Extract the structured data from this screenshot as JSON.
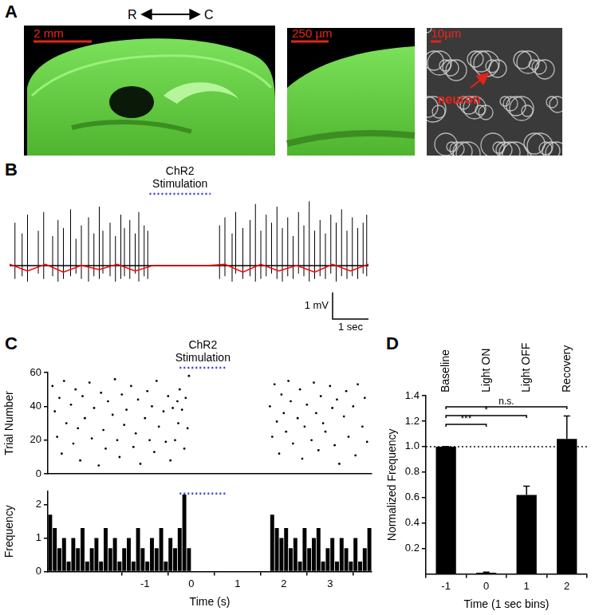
{
  "panel_labels": [
    "A",
    "B",
    "C",
    "D"
  ],
  "panel_a": {
    "direction": [
      "R",
      "C"
    ],
    "images": [
      {
        "scale_bar": "2 mm"
      },
      {
        "scale_bar": "250 µm"
      },
      {
        "scale_bar": "10µm",
        "annotation": "neuron"
      }
    ]
  },
  "chart_data": [
    {
      "type": "line",
      "tick_labels": false,
      "grid": false,
      "xlim": [
        0,
        10
      ],
      "ylim": [
        -2.0,
        2.5
      ],
      "annotation": "ChR2 Stimulation",
      "stimulation": [
        3.9,
        5.6
      ],
      "scale_bar": {
        "x": 1,
        "x_label": "1 sec",
        "y": 1,
        "y_label": "1 mV"
      },
      "spikes": {
        "color": "#000000",
        "x": [
          0.15,
          0.35,
          0.5,
          0.8,
          0.95,
          1.2,
          1.35,
          1.5,
          1.7,
          1.85,
          2.0,
          2.2,
          2.35,
          2.5,
          2.6,
          2.8,
          2.95,
          3.1,
          3.2,
          3.35,
          3.5,
          3.6,
          3.75,
          3.85,
          5.85,
          6.0,
          6.2,
          6.3,
          6.5,
          6.7,
          6.85,
          7.0,
          7.15,
          7.3,
          7.45,
          7.6,
          7.75,
          7.9,
          8.05,
          8.2,
          8.35,
          8.5,
          8.65,
          8.8,
          8.95,
          9.1,
          9.25,
          9.4,
          9.55,
          9.7,
          9.85,
          9.95
        ],
        "high": [
          1.6,
          1.2,
          1.9,
          1.3,
          2.0,
          1.1,
          1.7,
          1.4,
          2.1,
          1.0,
          1.5,
          1.8,
          1.2,
          2.2,
          1.3,
          1.6,
          1.1,
          1.9,
          1.4,
          1.7,
          1.2,
          2.0,
          1.5,
          1.3,
          1.5,
          1.8,
          1.2,
          2.0,
          1.4,
          1.7,
          2.3,
          1.3,
          1.9,
          1.6,
          2.2,
          1.4,
          1.8,
          1.1,
          2.0,
          1.5,
          2.4,
          1.3,
          1.7,
          1.2,
          1.9,
          1.6,
          2.1,
          1.3,
          1.8,
          1.4,
          1.6,
          1.9
        ],
        "low": [
          -0.5,
          -0.4,
          -0.6,
          -0.3,
          -0.5,
          -0.4,
          -0.6,
          -0.5,
          -0.4,
          -0.3,
          -0.5,
          -0.6,
          -0.4,
          -0.5,
          -0.3,
          -0.4,
          -0.6,
          -0.5,
          -0.4,
          -0.5,
          -0.3,
          -0.6,
          -0.4,
          -0.5,
          -0.5,
          -0.4,
          -0.6,
          -0.3,
          -0.5,
          -0.4,
          -0.6,
          -0.5,
          -0.4,
          -0.3,
          -0.5,
          -0.6,
          -0.4,
          -0.5,
          -0.3,
          -0.4,
          -0.6,
          -0.5,
          -0.4,
          -0.5,
          -0.3,
          -0.6,
          -0.4,
          -0.5,
          -0.4,
          -0.5,
          -0.3,
          -0.4
        ]
      },
      "series": [
        {
          "type": "line",
          "color": "#000000",
          "x": [
            0,
            10
          ],
          "values": [
            0,
            0
          ]
        },
        {
          "type": "line",
          "color": "#ff0000",
          "x": [
            0,
            0.5,
            1,
            1.5,
            2,
            2.5,
            3,
            3.5,
            4,
            4.5,
            5,
            5.5,
            6,
            6.5,
            7,
            7.5,
            8,
            8.5,
            9,
            9.5,
            10
          ],
          "values": [
            0.05,
            -0.2,
            0.05,
            -0.25,
            0.0,
            -0.15,
            0.05,
            -0.2,
            0.0,
            0.0,
            0.0,
            0.0,
            0.05,
            -0.25,
            0.05,
            -0.2,
            0.0,
            -0.25,
            0.05,
            -0.2,
            0.05
          ]
        }
      ]
    },
    {
      "type": "scatter",
      "tick_labels": "y",
      "grid": false,
      "color": "#000000",
      "marker": "dot",
      "y_label": "Trial Number",
      "xlim": [
        -3.1,
        3.9
      ],
      "ylim": [
        0,
        60
      ],
      "yticks": [
        0,
        20,
        40,
        60
      ],
      "annotation": "ChR2 Stimulation",
      "stimulation": [
        -0.25,
        0.75
      ],
      "x": [
        -3.0,
        -2.95,
        -2.9,
        -2.85,
        -2.8,
        -2.75,
        -2.7,
        -2.6,
        -2.55,
        -2.5,
        -2.45,
        -2.4,
        -2.35,
        -2.3,
        -2.2,
        -2.15,
        -2.1,
        -2.0,
        -1.95,
        -1.9,
        -1.85,
        -1.8,
        -1.7,
        -1.65,
        -1.6,
        -1.55,
        -1.5,
        -1.45,
        -1.4,
        -1.3,
        -1.25,
        -1.2,
        -1.15,
        -1.1,
        -1.0,
        -0.95,
        -0.9,
        -0.85,
        -0.8,
        -0.75,
        -0.7,
        -0.6,
        -0.55,
        -0.5,
        -0.45,
        -0.4,
        -0.35,
        -0.3,
        -0.28,
        -0.25,
        -0.2,
        -0.15,
        -0.12,
        -0.08,
        -0.05,
        1.7,
        1.75,
        1.8,
        1.85,
        1.9,
        1.95,
        2.0,
        2.05,
        2.1,
        2.15,
        2.2,
        2.3,
        2.35,
        2.4,
        2.45,
        2.5,
        2.6,
        2.65,
        2.7,
        2.75,
        2.8,
        2.85,
        2.9,
        3.0,
        3.05,
        3.1,
        3.15,
        3.2,
        3.3,
        3.35,
        3.4,
        3.5,
        3.55,
        3.6,
        3.7,
        3.75,
        3.8
      ],
      "values": [
        52,
        37,
        22,
        45,
        12,
        55,
        30,
        41,
        18,
        50,
        27,
        8,
        46,
        33,
        54,
        21,
        39,
        5,
        48,
        26,
        15,
        43,
        35,
        56,
        20,
        10,
        47,
        29,
        38,
        52,
        16,
        24,
        44,
        6,
        33,
        49,
        20,
        40,
        13,
        55,
        28,
        37,
        19,
        46,
        8,
        39,
        20,
        43,
        30,
        50,
        38,
        15,
        45,
        27,
        58,
        40,
        22,
        53,
        31,
        12,
        47,
        36,
        25,
        55,
        43,
        18,
        33,
        50,
        9,
        28,
        41,
        20,
        54,
        36,
        14,
        46,
        30,
        25,
        52,
        39,
        17,
        44,
        6,
        34,
        49,
        22,
        40,
        11,
        53,
        28,
        45,
        19
      ]
    },
    {
      "type": "histogram",
      "grid": false,
      "color": "#000000",
      "x_label": "Time (s)",
      "y_label": "Frequency",
      "xlim": [
        -3.1,
        3.9
      ],
      "xticks": [
        -1,
        0,
        1,
        2,
        3
      ],
      "ylim": [
        0,
        2.4
      ],
      "yticks": [
        0,
        1,
        2
      ],
      "stimulation": [
        -0.25,
        0.75
      ],
      "bins": [
        -3.1,
        -3.0,
        -2.9,
        -2.8,
        -2.7,
        -2.6,
        -2.5,
        -2.4,
        -2.3,
        -2.2,
        -2.1,
        -2.0,
        -1.9,
        -1.8,
        -1.7,
        -1.6,
        -1.5,
        -1.4,
        -1.3,
        -1.2,
        -1.1,
        -1.0,
        -0.9,
        -0.8,
        -0.7,
        -0.6,
        -0.5,
        -0.4,
        -0.3,
        -0.2,
        -0.1,
        0,
        0.1,
        0.2,
        0.3,
        0.4,
        0.5,
        0.6,
        0.7,
        0.8,
        0.9,
        1.0,
        1.1,
        1.2,
        1.3,
        1.4,
        1.5,
        1.6,
        1.7,
        1.8,
        1.9,
        2.0,
        2.1,
        2.2,
        2.3,
        2.4,
        2.5,
        2.6,
        2.7,
        2.8,
        2.9,
        3.0,
        3.1,
        3.2,
        3.3,
        3.4,
        3.5,
        3.6,
        3.7,
        3.8,
        3.9
      ],
      "values": [
        1.7,
        1.3,
        0.7,
        1.0,
        0.3,
        1.0,
        0.7,
        1.3,
        0.3,
        0.7,
        1.0,
        0.3,
        1.3,
        0.7,
        1.0,
        0.3,
        0.7,
        1.0,
        0.3,
        1.3,
        0.7,
        0.3,
        1.0,
        0.7,
        1.3,
        0.3,
        1.0,
        0.7,
        1.3,
        2.3,
        0.7,
        0,
        0,
        0,
        0,
        0,
        0,
        0,
        0,
        0,
        0,
        0,
        0,
        0,
        0,
        0,
        0,
        0,
        1.7,
        1.3,
        1.0,
        1.3,
        0.7,
        1.0,
        0.3,
        1.3,
        0.7,
        1.0,
        1.3,
        0.3,
        0.7,
        1.0,
        0.3,
        1.0,
        0.7,
        0.3,
        1.0,
        0.3,
        0.7,
        1.3
      ]
    },
    {
      "type": "bar",
      "grid": false,
      "color": "#000000",
      "x_label": "Time (1 sec bins)",
      "y_label": "Normalized Frequency",
      "categories": [
        "-1",
        "0",
        "1",
        "2"
      ],
      "bar_labels": [
        "Baseline",
        "Light ON",
        "Light OFF",
        "Recovery"
      ],
      "values": [
        1.0,
        0.01,
        0.62,
        1.06
      ],
      "errors": [
        0,
        0.005,
        0.07,
        0.18
      ],
      "ylim": [
        0,
        1.4
      ],
      "yticks": [
        0.2,
        0.4,
        0.6,
        0.8,
        {
          "value": 1,
          "label": "1.0"
        },
        1.2,
        1.4
      ],
      "reference_line": 1,
      "significance": [
        {
          "from": "-1",
          "to": "0",
          "label": "***"
        },
        {
          "from": "-1",
          "to": "1",
          "label": "*"
        },
        {
          "from": "-1",
          "to": "2",
          "label": "n.s."
        }
      ]
    }
  ]
}
